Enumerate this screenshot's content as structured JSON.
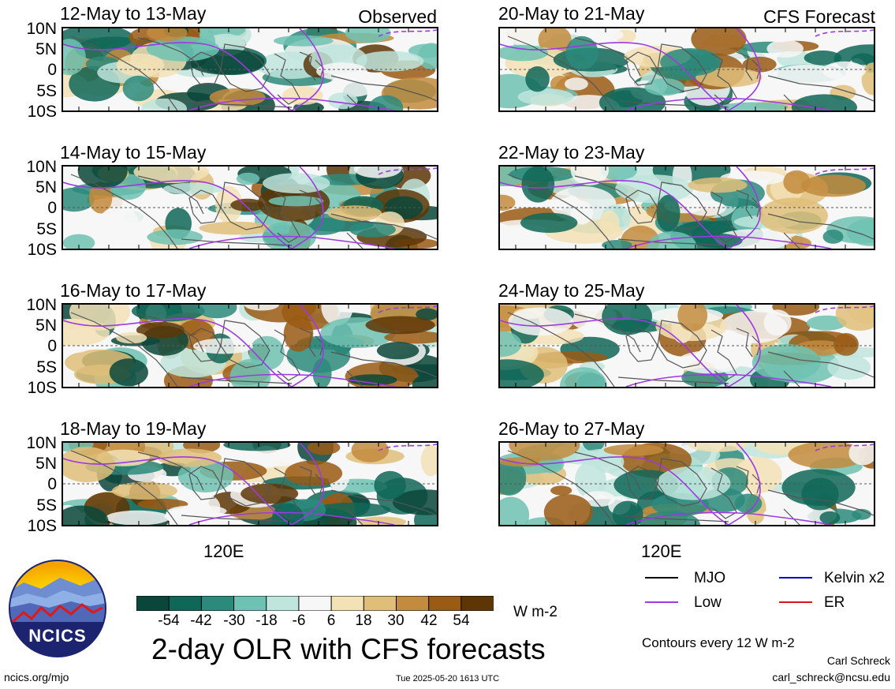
{
  "panels_observed": {
    "source_label": "Observed",
    "periods": [
      "12-May to 13-May",
      "14-May to 15-May",
      "16-May to 17-May",
      "18-May to 19-May"
    ]
  },
  "panels_forecast": {
    "source_label": "CFS Forecast",
    "periods": [
      "20-May to 21-May",
      "22-May to 23-May",
      "24-May to 25-May",
      "26-May to 27-May"
    ]
  },
  "lat_ticks": [
    "10N",
    "5N",
    "0",
    "5S",
    "10S"
  ],
  "lon_label": "120E",
  "colorbar": {
    "ticks": [
      "-54",
      "-42",
      "-30",
      "-18",
      "-6",
      "6",
      "18",
      "30",
      "42",
      "54"
    ],
    "colors": [
      "#0b463a",
      "#0f6758",
      "#2b8a7b",
      "#6ec2b3",
      "#bfe5dd",
      "#f7f7f7",
      "#f3e2b6",
      "#dfbe79",
      "#c38b3d",
      "#9a5b14",
      "#5e3606"
    ],
    "units": "W m-2"
  },
  "legend": {
    "items": [
      {
        "label": "MJO",
        "color": "#000000"
      },
      {
        "label": "Kelvin x2",
        "color": "#0000cc"
      },
      {
        "label": "Low",
        "color": "#9d3ae0"
      },
      {
        "label": "ER",
        "color": "#d41818"
      }
    ],
    "note": "Contours every 12 W m-2"
  },
  "main_title": "2-day OLR with CFS forecasts",
  "logo_text": "NCICS",
  "footer": {
    "left": "ncics.org/mjo",
    "center": "Tue 2025-05-20 1613 UTC",
    "author": "Carl Schreck",
    "email": "carl_schreck@ncsu.edu"
  }
}
